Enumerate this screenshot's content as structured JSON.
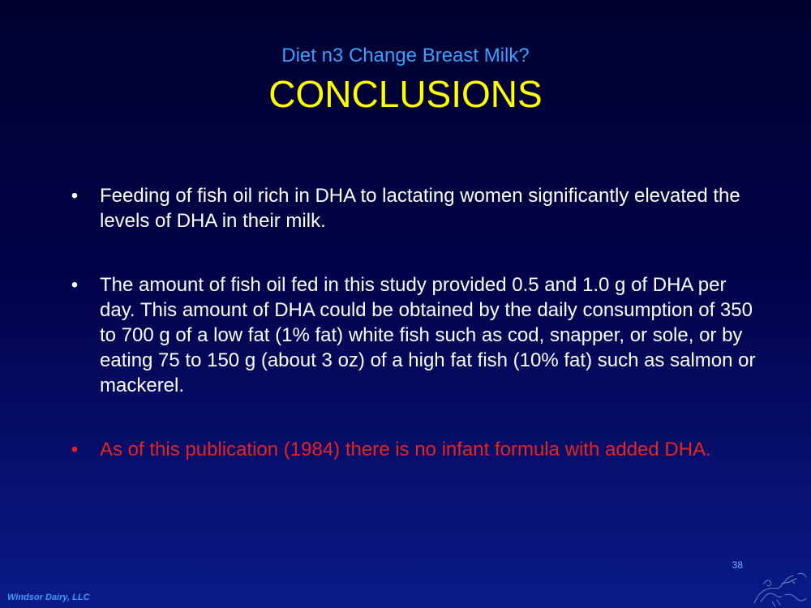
{
  "slide": {
    "subtitle": "Diet n3 Change Breast Milk?",
    "title": "CONCLUSIONS",
    "bullet_symbol": "•",
    "bullets": [
      {
        "text": "Feeding of fish oil rich in DHA to lactating women significantly elevated the levels of DHA in their milk.",
        "color": "#ffffff"
      },
      {
        "text": "The amount of fish oil fed in this study provided 0.5 and 1.0 g of DHA per day. This amount of DHA could be obtained by the daily consumption of 350 to 700 g of a low fat (1% fat) white fish such as cod, snapper, or sole, or by eating 75 to 150 g (about 3 oz) of a high fat fish (10% fat) such as salmon or mackerel.",
        "color": "#ffffff"
      },
      {
        "text": "As of this publication (1984) there is no infant formula with added DHA.",
        "color": "#e8241a"
      }
    ],
    "page_number": "38",
    "footer": "Windsor Dairy, LLC",
    "logo_icon": "sketch-logo-icon"
  }
}
